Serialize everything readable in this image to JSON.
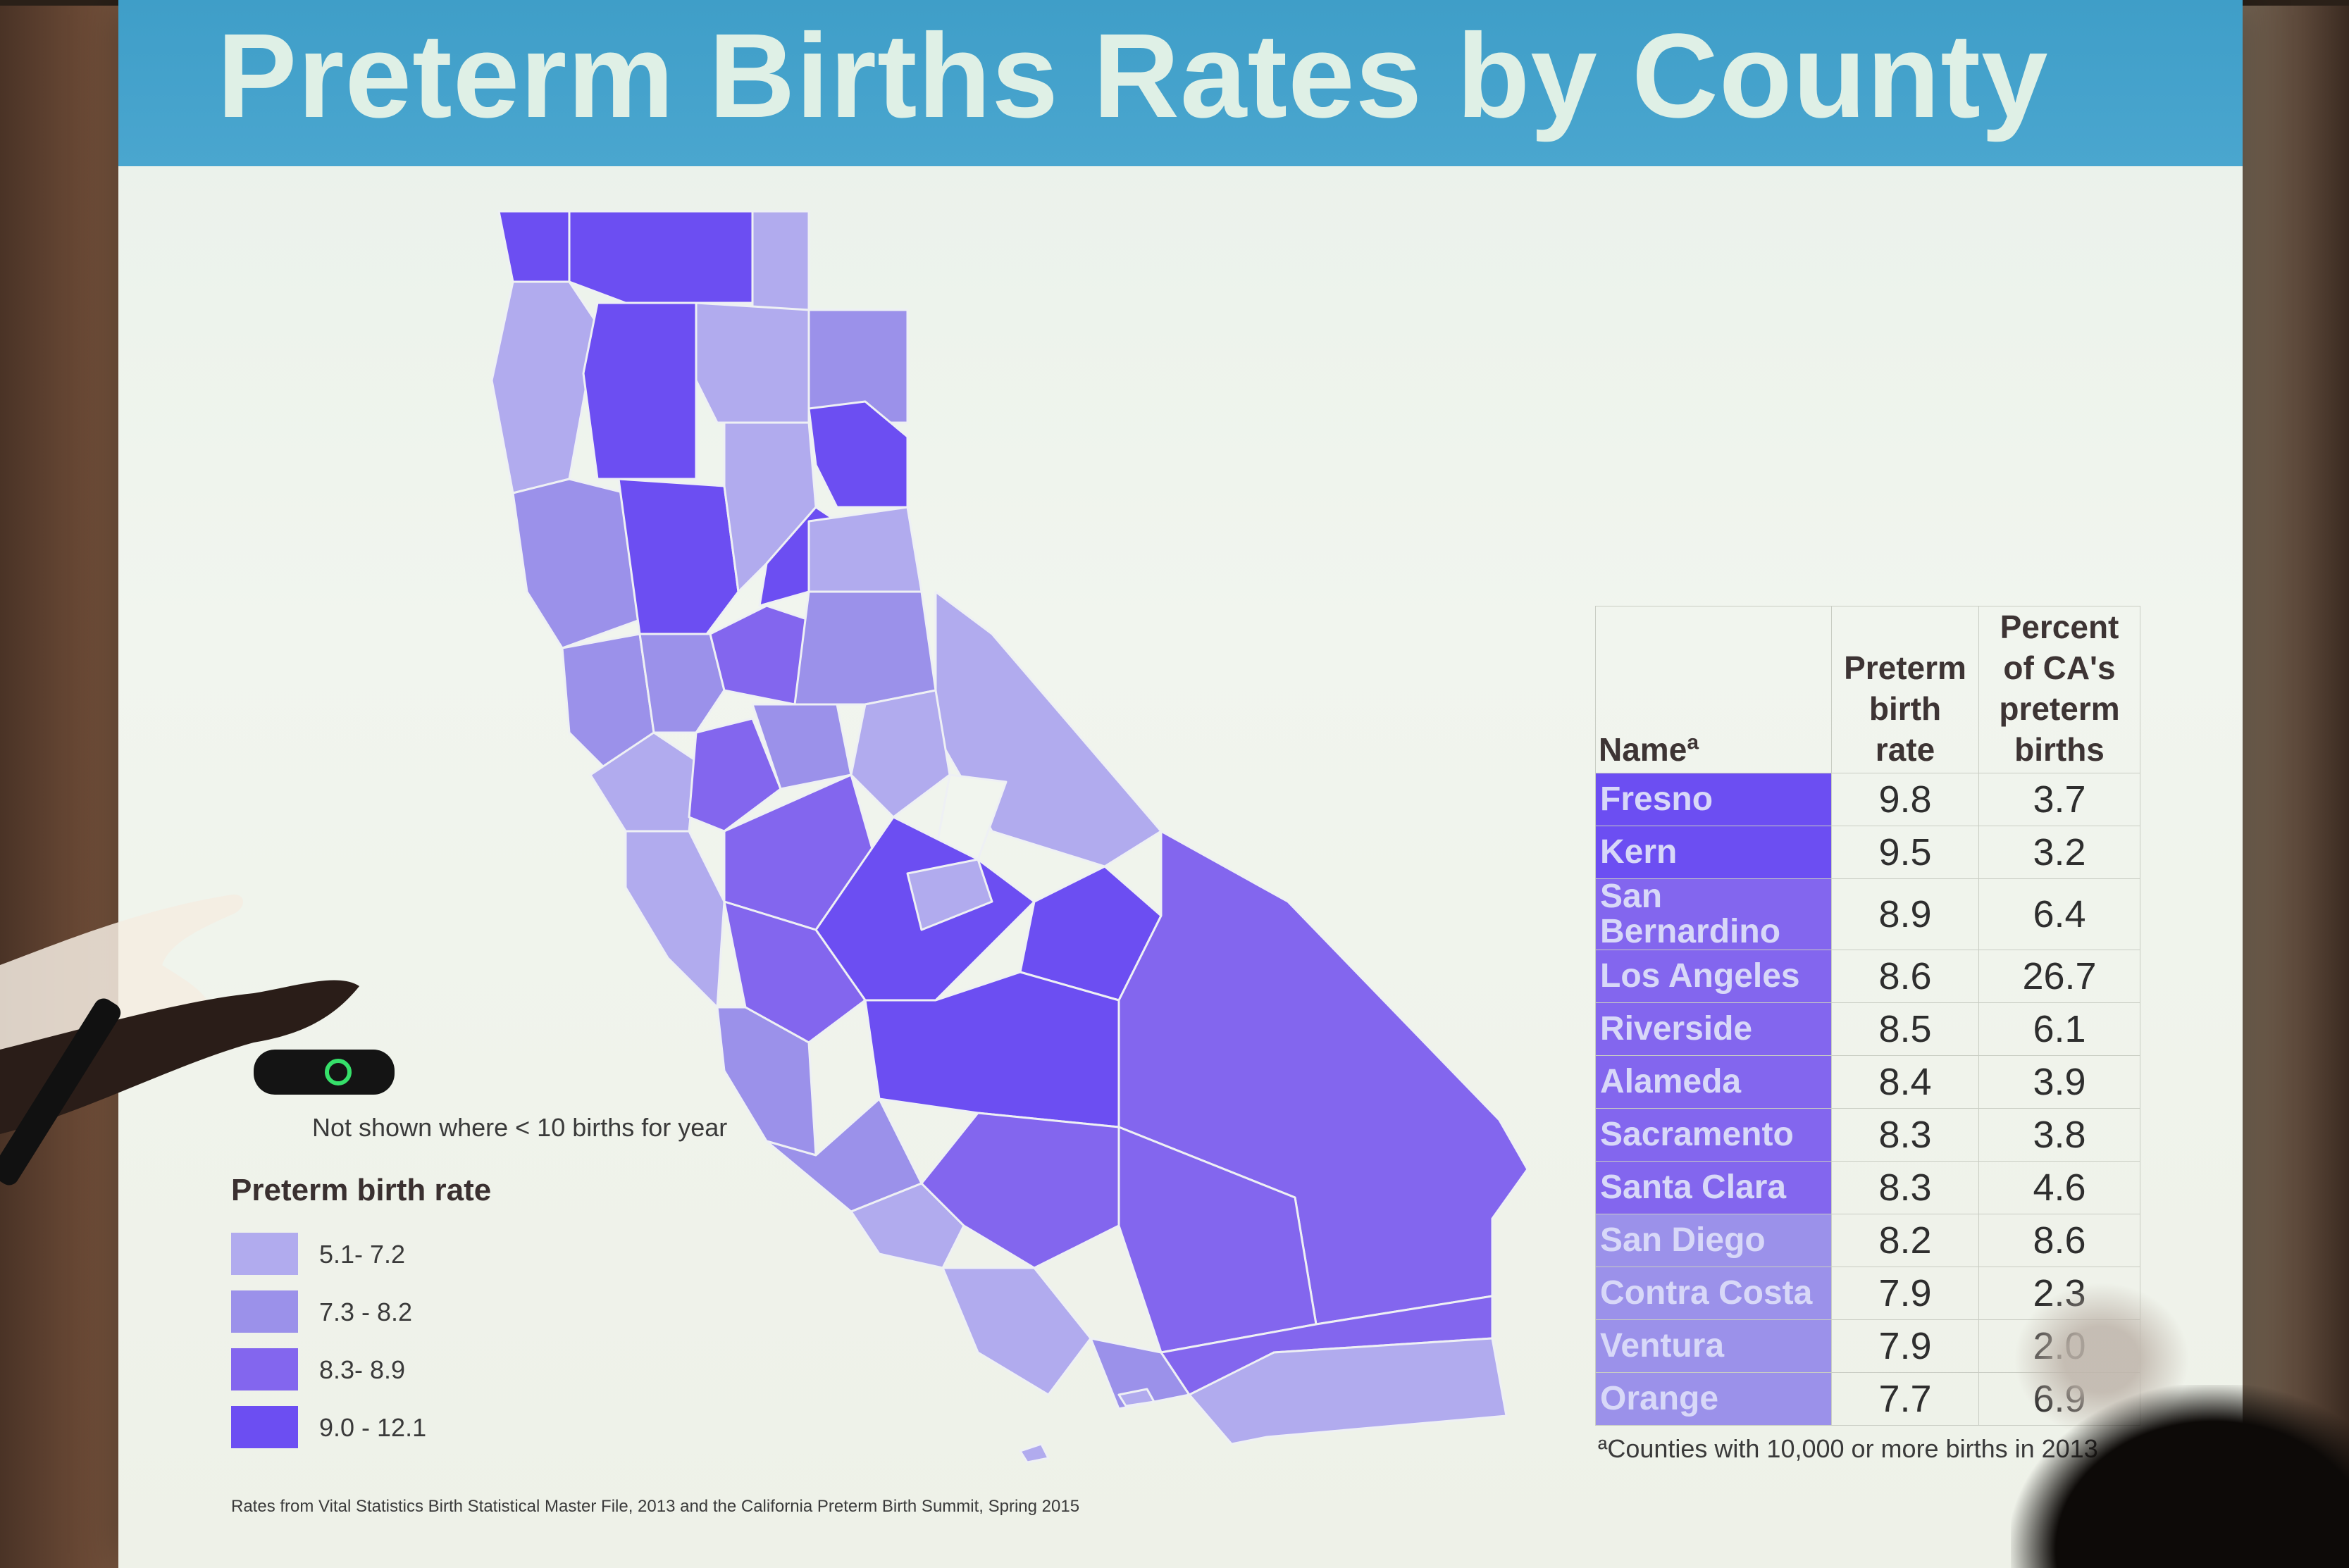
{
  "slide": {
    "title": "Preterm Births Rates by County",
    "map_caption": "Not shown where < 10 births for year",
    "legend": {
      "title": "Preterm birth rate",
      "items": [
        {
          "label": "5.1- 7.2",
          "color": "#b1abee"
        },
        {
          "label": "7.3 - 8.2",
          "color": "#9b91ea"
        },
        {
          "label": "8.3- 8.9",
          "color": "#8366ee"
        },
        {
          "label": "9.0 - 12.1",
          "color": "#6c4ef2"
        }
      ]
    },
    "source": "Rates from Vital Statistics Birth Statistical Master File, 2013 and the California Preterm Birth Summit, Spring 2015",
    "table": {
      "headers": {
        "name": "Nameª",
        "rate": [
          "Preterm",
          "birth",
          "rate"
        ],
        "percent": [
          "Percent",
          "of CA's",
          "preterm",
          "births"
        ]
      },
      "rows": [
        {
          "name": "Fresno",
          "rate": "9.8",
          "percent": "3.7",
          "color": "#6c4ef2"
        },
        {
          "name": "Kern",
          "rate": "9.5",
          "percent": "3.2",
          "color": "#6c4ef2"
        },
        {
          "name": "San Bernardino",
          "rate": "8.9",
          "percent": "6.4",
          "color": "#8366ee"
        },
        {
          "name": "Los Angeles",
          "rate": "8.6",
          "percent": "26.7",
          "color": "#8366ee"
        },
        {
          "name": "Riverside",
          "rate": "8.5",
          "percent": "6.1",
          "color": "#8366ee"
        },
        {
          "name": "Alameda",
          "rate": "8.4",
          "percent": "3.9",
          "color": "#8366ee"
        },
        {
          "name": "Sacramento",
          "rate": "8.3",
          "percent": "3.8",
          "color": "#8366ee"
        },
        {
          "name": "Santa Clara",
          "rate": "8.3",
          "percent": "4.6",
          "color": "#8366ee"
        },
        {
          "name": "San Diego",
          "rate": "8.2",
          "percent": "8.6",
          "color": "#9b91ea"
        },
        {
          "name": "Contra Costa",
          "rate": "7.9",
          "percent": "2.3",
          "color": "#9b91ea"
        },
        {
          "name": "Ventura",
          "rate": "7.9",
          "percent": "2.0",
          "color": "#9b91ea"
        },
        {
          "name": "Orange",
          "rate": "7.7",
          "percent": "6.9",
          "color": "#9b91ea"
        }
      ],
      "footnote": "ªCounties with 10,000 or more births in 2013"
    }
  },
  "colors": {
    "title_bar": "#4aa6cf",
    "slide_bg": "#eef3ec",
    "rate_low": "#b1abee",
    "rate_mid_low": "#9b91ea",
    "rate_mid_high": "#8366ee",
    "rate_high": "#6c4ef2"
  }
}
